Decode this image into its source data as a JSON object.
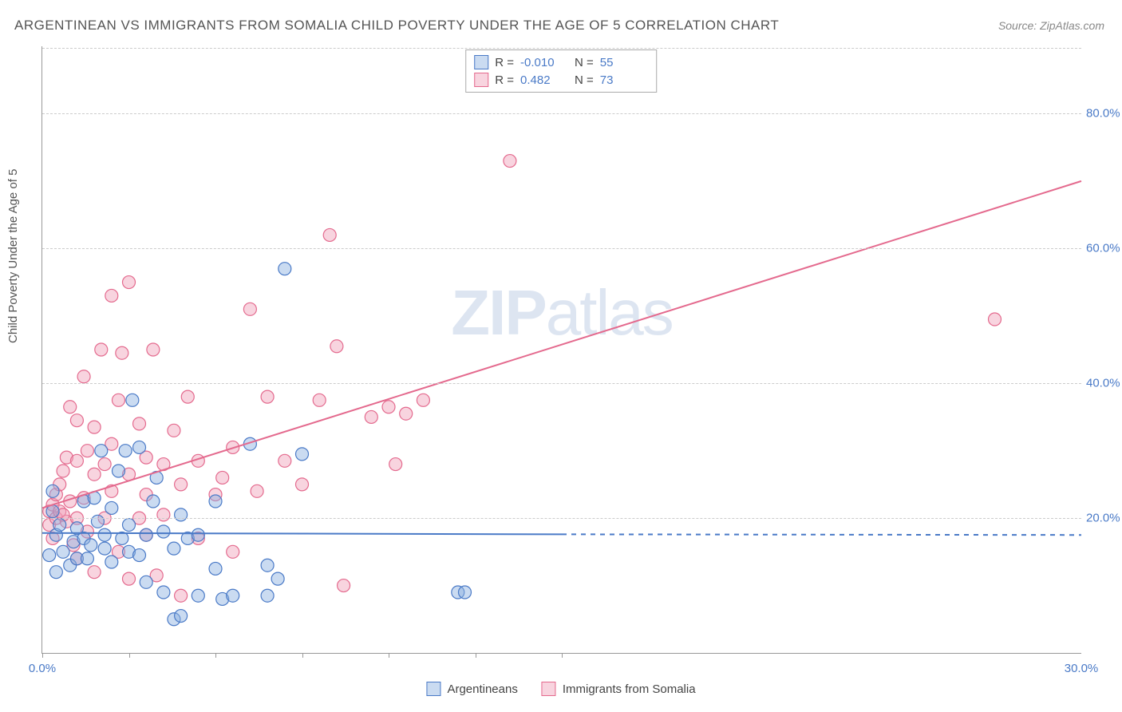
{
  "title": "ARGENTINEAN VS IMMIGRANTS FROM SOMALIA CHILD POVERTY UNDER THE AGE OF 5 CORRELATION CHART",
  "source": "Source: ZipAtlas.com",
  "ylabel": "Child Poverty Under the Age of 5",
  "watermark": "ZIPatlas",
  "chart": {
    "type": "scatter",
    "xlim": [
      0,
      30
    ],
    "ylim": [
      0,
      90
    ],
    "xticks": [
      0.0,
      30.0
    ],
    "yticks": [
      20.0,
      40.0,
      60.0,
      80.0
    ],
    "xtick_labels": [
      "0.0%",
      "30.0%"
    ],
    "ytick_labels": [
      "20.0%",
      "40.0%",
      "60.0%",
      "80.0%"
    ],
    "vtick_positions": [
      0,
      2.5,
      5.0,
      7.5,
      10.0,
      12.5,
      15.0
    ],
    "background_color": "#ffffff",
    "grid_color": "#cccccc",
    "axis_color": "#999999",
    "tick_label_color": "#4a7ac7",
    "marker_radius": 8,
    "marker_stroke_width": 1.2,
    "trend_line_width": 2,
    "series": [
      {
        "name": "Argentineans",
        "fill": "rgba(137,176,224,0.45)",
        "stroke": "#4a7ac7",
        "R": "-0.010",
        "N": "55",
        "trend": {
          "x1": 0,
          "y1": 17.8,
          "x2": 15,
          "y2": 17.6,
          "x2_dash": 30,
          "y2_dash": 17.5
        },
        "points": [
          [
            0.2,
            14.5
          ],
          [
            0.3,
            21.0
          ],
          [
            0.4,
            17.5
          ],
          [
            0.3,
            24.0
          ],
          [
            0.5,
            19.0
          ],
          [
            0.6,
            15.0
          ],
          [
            0.8,
            13.0
          ],
          [
            0.4,
            12.0
          ],
          [
            0.9,
            16.5
          ],
          [
            1.0,
            18.5
          ],
          [
            1.0,
            14.0
          ],
          [
            1.2,
            17.0
          ],
          [
            1.2,
            22.5
          ],
          [
            1.3,
            14.0
          ],
          [
            1.4,
            16.0
          ],
          [
            1.5,
            23.0
          ],
          [
            1.6,
            19.5
          ],
          [
            1.8,
            17.5
          ],
          [
            1.8,
            15.5
          ],
          [
            2.0,
            21.5
          ],
          [
            2.0,
            13.5
          ],
          [
            2.2,
            27.0
          ],
          [
            2.3,
            17.0
          ],
          [
            2.5,
            15.0
          ],
          [
            2.5,
            19.0
          ],
          [
            2.6,
            37.5
          ],
          [
            2.8,
            30.5
          ],
          [
            2.8,
            14.5
          ],
          [
            3.0,
            17.5
          ],
          [
            3.0,
            10.5
          ],
          [
            3.2,
            22.5
          ],
          [
            3.3,
            26.0
          ],
          [
            3.5,
            18.0
          ],
          [
            3.5,
            9.0
          ],
          [
            3.8,
            15.5
          ],
          [
            3.8,
            5.0
          ],
          [
            4.0,
            20.5
          ],
          [
            4.0,
            5.5
          ],
          [
            4.2,
            17.0
          ],
          [
            4.5,
            17.5
          ],
          [
            4.5,
            8.5
          ],
          [
            5.0,
            12.5
          ],
          [
            5.0,
            22.5
          ],
          [
            5.2,
            8.0
          ],
          [
            5.5,
            8.5
          ],
          [
            6.0,
            31.0
          ],
          [
            6.5,
            13.0
          ],
          [
            6.5,
            8.5
          ],
          [
            6.8,
            11.0
          ],
          [
            7.0,
            57.0
          ],
          [
            7.5,
            29.5
          ],
          [
            12.0,
            9.0
          ],
          [
            12.2,
            9.0
          ],
          [
            1.7,
            30.0
          ],
          [
            2.4,
            30.0
          ]
        ]
      },
      {
        "name": "Immigrants from Somalia",
        "fill": "rgba(240,160,185,0.45)",
        "stroke": "#e46a8e",
        "R": "0.482",
        "N": "73",
        "trend": {
          "x1": 0,
          "y1": 21.5,
          "x2": 30,
          "y2": 70.0
        },
        "points": [
          [
            0.2,
            19.0
          ],
          [
            0.2,
            21.0
          ],
          [
            0.3,
            22.0
          ],
          [
            0.3,
            17.0
          ],
          [
            0.4,
            20.0
          ],
          [
            0.4,
            23.5
          ],
          [
            0.5,
            21.0
          ],
          [
            0.5,
            25.0
          ],
          [
            0.6,
            27.0
          ],
          [
            0.7,
            19.5
          ],
          [
            0.7,
            29.0
          ],
          [
            0.8,
            22.5
          ],
          [
            0.8,
            36.5
          ],
          [
            0.9,
            16.0
          ],
          [
            1.0,
            14.0
          ],
          [
            1.0,
            28.5
          ],
          [
            1.0,
            34.5
          ],
          [
            1.2,
            23.0
          ],
          [
            1.2,
            41.0
          ],
          [
            1.3,
            30.0
          ],
          [
            1.3,
            18.0
          ],
          [
            1.5,
            26.5
          ],
          [
            1.5,
            33.5
          ],
          [
            1.5,
            12.0
          ],
          [
            1.7,
            45.0
          ],
          [
            1.8,
            28.0
          ],
          [
            1.8,
            20.0
          ],
          [
            2.0,
            24.0
          ],
          [
            2.0,
            31.0
          ],
          [
            2.0,
            53.0
          ],
          [
            2.2,
            37.5
          ],
          [
            2.2,
            15.0
          ],
          [
            2.3,
            44.5
          ],
          [
            2.5,
            55.0
          ],
          [
            2.5,
            26.5
          ],
          [
            2.5,
            11.0
          ],
          [
            2.8,
            34.0
          ],
          [
            3.0,
            23.5
          ],
          [
            3.0,
            29.0
          ],
          [
            3.0,
            17.5
          ],
          [
            3.2,
            45.0
          ],
          [
            3.3,
            11.5
          ],
          [
            3.5,
            28.0
          ],
          [
            3.5,
            20.5
          ],
          [
            3.8,
            33.0
          ],
          [
            4.0,
            25.0
          ],
          [
            4.0,
            8.5
          ],
          [
            4.2,
            38.0
          ],
          [
            4.5,
            17.0
          ],
          [
            4.5,
            28.5
          ],
          [
            5.0,
            23.5
          ],
          [
            5.2,
            26.0
          ],
          [
            5.5,
            15.0
          ],
          [
            5.5,
            30.5
          ],
          [
            6.0,
            51.0
          ],
          [
            6.2,
            24.0
          ],
          [
            6.5,
            38.0
          ],
          [
            7.0,
            28.5
          ],
          [
            7.5,
            25.0
          ],
          [
            8.0,
            37.5
          ],
          [
            8.3,
            62.0
          ],
          [
            8.5,
            45.5
          ],
          [
            8.7,
            10.0
          ],
          [
            9.5,
            35.0
          ],
          [
            10.0,
            36.5
          ],
          [
            10.2,
            28.0
          ],
          [
            10.5,
            35.5
          ],
          [
            11.0,
            37.5
          ],
          [
            13.5,
            73.0
          ],
          [
            27.5,
            49.5
          ],
          [
            1.0,
            20.0
          ],
          [
            0.6,
            20.5
          ],
          [
            2.8,
            20.0
          ]
        ]
      }
    ]
  },
  "legend_bottom": [
    "Argentineans",
    "Immigrants from Somalia"
  ]
}
